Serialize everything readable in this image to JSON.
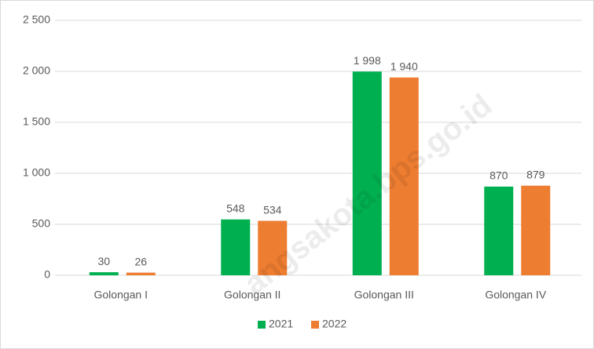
{
  "chart_data": {
    "type": "bar",
    "categories": [
      "Golongan I",
      "Golongan II",
      "Golongan III",
      "Golongan IV"
    ],
    "series": [
      {
        "name": "2021",
        "color": "#00b050",
        "values": [
          30,
          548,
          1998,
          870
        ],
        "value_labels": [
          "30",
          "548",
          "1 998",
          "870"
        ]
      },
      {
        "name": "2022",
        "color": "#ed7d31",
        "values": [
          26,
          534,
          1940,
          879
        ],
        "value_labels": [
          "26",
          "534",
          "1 940",
          "879"
        ]
      }
    ],
    "ylim": [
      0,
      2500
    ],
    "yticks": [
      0,
      500,
      {
        "value": 1000,
        "label": "1 000"
      },
      {
        "value": 1500,
        "label": "1 500"
      },
      {
        "value": 2000,
        "label": "2 000"
      },
      {
        "value": 2500,
        "label": "2 500"
      }
    ],
    "grid": true,
    "legend": "bottom",
    "watermark": "angsakota.bps.go.id"
  }
}
